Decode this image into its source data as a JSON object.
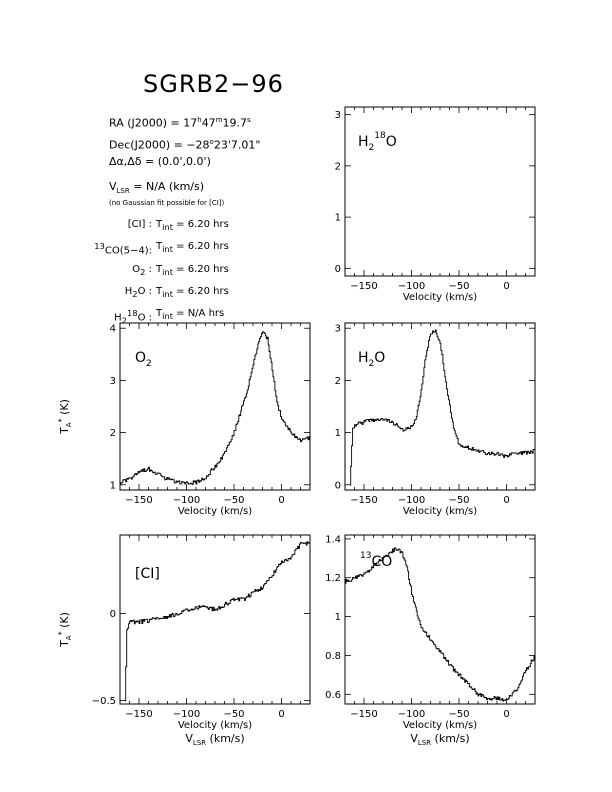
{
  "source": {
    "title": "SGRB2−96",
    "ra_label": "RA (J2000) = ",
    "ra_h": "17",
    "ra_m": "47",
    "ra_s": "19.7",
    "dec_label": "Dec(J2000) = ",
    "dec_d": "−28",
    "dec_am": "23",
    "dec_as": "7.01",
    "offset_label": "Δα,Δδ = ",
    "offset_value": "(0.0',0.0')",
    "vlsr_label": "V",
    "vlsr_sub": "LSR",
    "vlsr_value": " = N/A  (km/s)",
    "note": "(no Gaussian fit possible for [CI])"
  },
  "integration": {
    "tint_label": "T",
    "tint_sub": "int",
    "rows": [
      {
        "pre": "[CI] : ",
        "value": " = 6.20 hrs"
      },
      {
        "pre": "CO(5−4): ",
        "iso": "13",
        "value": " = 6.20 hrs"
      },
      {
        "pre": "O",
        "psub": "2",
        "post": " : ",
        "value": " = 6.20 hrs"
      },
      {
        "pre": "H",
        "psub": "2",
        "post": "O : ",
        "value": " = 6.20 hrs"
      },
      {
        "pre": "H",
        "psub": "2",
        "psup": "18",
        "post": "O : ",
        "value": " = N/A hrs"
      }
    ]
  },
  "chart_data": [
    {
      "type": "line",
      "name": "H2 18O",
      "label": {
        "main": "H",
        "sub": "2",
        "sup": "18",
        "tail": "O"
      },
      "xlim": [
        -170,
        30
      ],
      "ylim": [
        -0.15,
        3.15
      ],
      "xticks": [
        -150,
        -100,
        -50,
        0
      ],
      "yticks": [
        0,
        1,
        2,
        3
      ],
      "xlabel": "Velocity (km/s)",
      "x": [],
      "y": []
    },
    {
      "type": "line",
      "name": "O2",
      "label": {
        "main": "O",
        "sub": "2"
      },
      "xlim": [
        -170,
        30
      ],
      "ylim": [
        0.9,
        4.1
      ],
      "xticks": [
        -150,
        -100,
        -50,
        0
      ],
      "yticks": [
        1,
        2,
        3,
        4
      ],
      "xlabel": "Velocity (km/s)",
      "ylabel": "T",
      "x": [
        -170,
        -160,
        -150,
        -140,
        -130,
        -120,
        -110,
        -100,
        -90,
        -80,
        -70,
        -60,
        -50,
        -45,
        -40,
        -35,
        -30,
        -25,
        -20,
        -15,
        -10,
        -5,
        0,
        10,
        20,
        30
      ],
      "y": [
        1.05,
        1.1,
        1.25,
        1.3,
        1.2,
        1.1,
        1.05,
        1.02,
        1.05,
        1.15,
        1.35,
        1.6,
        2.0,
        2.3,
        2.6,
        2.9,
        3.3,
        3.7,
        3.95,
        3.8,
        3.2,
        2.6,
        2.25,
        2.0,
        1.85,
        1.9
      ]
    },
    {
      "type": "line",
      "name": "H2O",
      "label": {
        "main": "H",
        "sub": "2",
        "tail": "O"
      },
      "xlim": [
        -170,
        30
      ],
      "ylim": [
        -0.1,
        3.1
      ],
      "xticks": [
        -150,
        -100,
        -50,
        0
      ],
      "yticks": [
        0,
        1,
        2,
        3
      ],
      "xlabel": "Velocity (km/s)",
      "x": [
        -165,
        -162,
        -160,
        -150,
        -140,
        -130,
        -120,
        -110,
        -100,
        -95,
        -90,
        -85,
        -80,
        -75,
        -70,
        -65,
        -60,
        -55,
        -50,
        -40,
        -30,
        -20,
        -10,
        0,
        10,
        20,
        30
      ],
      "y": [
        0.0,
        1.1,
        1.15,
        1.2,
        1.25,
        1.25,
        1.2,
        1.05,
        1.1,
        1.3,
        1.8,
        2.5,
        2.9,
        2.95,
        2.7,
        2.1,
        1.5,
        1.0,
        0.75,
        0.7,
        0.65,
        0.6,
        0.58,
        0.55,
        0.6,
        0.62,
        0.65
      ]
    },
    {
      "type": "line",
      "name": "[CI]",
      "label": {
        "main": "[CI]"
      },
      "xlim": [
        -170,
        30
      ],
      "ylim": [
        -0.52,
        0.45
      ],
      "xticks": [
        -150,
        -100,
        -50,
        0
      ],
      "yticks": [
        -0.5,
        0
      ],
      "xlabel": "Velocity (km/s)",
      "xlabel2": "V",
      "xlabel2_sub": "LSR",
      "xlabel2_tail": " (km/s)",
      "ylabel": "T",
      "x": [
        -165,
        -163,
        -160,
        -150,
        -140,
        -130,
        -120,
        -110,
        -100,
        -90,
        -80,
        -70,
        -60,
        -50,
        -40,
        -30,
        -20,
        -10,
        0,
        10,
        20,
        30
      ],
      "y": [
        -0.5,
        -0.1,
        -0.05,
        -0.05,
        -0.04,
        -0.03,
        -0.02,
        0.0,
        0.02,
        0.03,
        0.04,
        0.02,
        0.05,
        0.08,
        0.08,
        0.12,
        0.15,
        0.22,
        0.3,
        0.32,
        0.4,
        0.4
      ]
    },
    {
      "type": "line",
      "name": "13CO",
      "label": {
        "main": "CO",
        "pre_sup": "13"
      },
      "xlim": [
        -170,
        30
      ],
      "ylim": [
        0.55,
        1.42
      ],
      "xticks": [
        -150,
        -100,
        -50,
        0
      ],
      "yticks": [
        0.6,
        0.8,
        1,
        1.2,
        1.4
      ],
      "xlabel": "Velocity (km/s)",
      "xlabel2": "V",
      "xlabel2_sub": "LSR",
      "xlabel2_tail": " (km/s)",
      "x": [
        -170,
        -160,
        -150,
        -140,
        -130,
        -120,
        -115,
        -110,
        -105,
        -100,
        -95,
        -90,
        -80,
        -70,
        -60,
        -50,
        -40,
        -30,
        -20,
        -10,
        0,
        10,
        20,
        30
      ],
      "y": [
        1.18,
        1.2,
        1.22,
        1.26,
        1.3,
        1.34,
        1.35,
        1.33,
        1.25,
        1.12,
        1.02,
        0.95,
        0.88,
        0.82,
        0.75,
        0.7,
        0.65,
        0.6,
        0.58,
        0.58,
        0.57,
        0.62,
        0.72,
        0.8
      ]
    }
  ]
}
